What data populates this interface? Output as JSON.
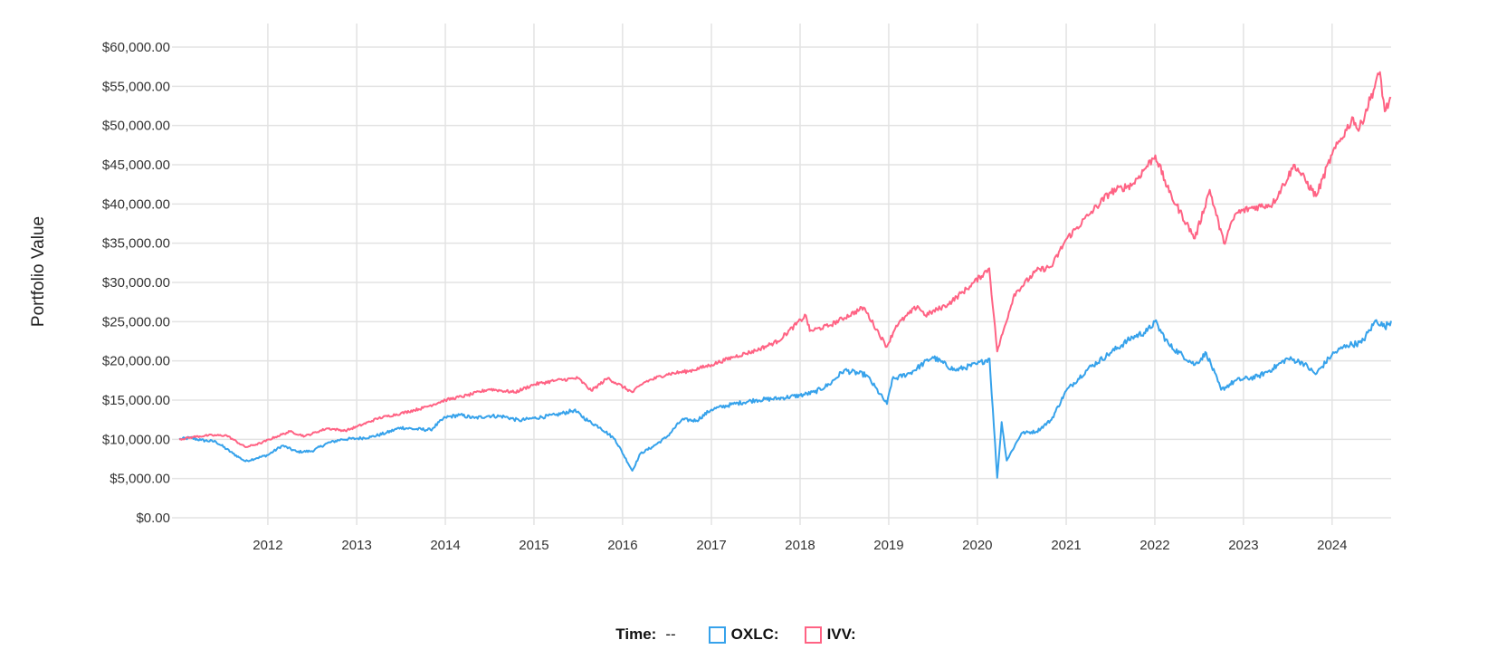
{
  "chart_data": {
    "type": "line",
    "title": "",
    "ylabel": "Portfolio Value",
    "xlabel": "",
    "ylim": [
      0,
      60000
    ],
    "xlim": [
      "2011-01-01",
      "2024-08-31"
    ],
    "y_ticks": [
      0,
      5000,
      10000,
      15000,
      20000,
      25000,
      30000,
      35000,
      40000,
      45000,
      50000,
      55000,
      60000
    ],
    "y_tick_labels": [
      "$0.00",
      "$5,000.00",
      "$10,000.00",
      "$15,000.00",
      "$20,000.00",
      "$25,000.00",
      "$30,000.00",
      "$35,000.00",
      "$40,000.00",
      "$45,000.00",
      "$50,000.00",
      "$55,000.00",
      "$60,000.00"
    ],
    "x_tick_labels": [
      "2012",
      "2013",
      "2014",
      "2015",
      "2016",
      "2017",
      "2018",
      "2019",
      "2020",
      "2021",
      "2022",
      "2023",
      "2024"
    ],
    "grid": true,
    "legend_position": "bottom-center",
    "series": [
      {
        "name": "OXLC",
        "color": "#36a2eb",
        "points": [
          [
            "2011-01-01",
            10000
          ],
          [
            "2011-02-15",
            10200
          ],
          [
            "2011-04-01",
            9900
          ],
          [
            "2011-06-01",
            9700
          ],
          [
            "2011-08-10",
            8200
          ],
          [
            "2011-10-01",
            7200
          ],
          [
            "2011-11-15",
            7600
          ],
          [
            "2012-01-01",
            8000
          ],
          [
            "2012-03-01",
            9200
          ],
          [
            "2012-05-01",
            8400
          ],
          [
            "2012-07-01",
            8500
          ],
          [
            "2012-09-01",
            9500
          ],
          [
            "2012-11-01",
            10000
          ],
          [
            "2013-01-01",
            10100
          ],
          [
            "2013-03-01",
            10300
          ],
          [
            "2013-05-01",
            10800
          ],
          [
            "2013-07-01",
            11500
          ],
          [
            "2013-09-01",
            11300
          ],
          [
            "2013-11-01",
            11200
          ],
          [
            "2014-01-01",
            12800
          ],
          [
            "2014-03-01",
            13100
          ],
          [
            "2014-05-01",
            12700
          ],
          [
            "2014-07-01",
            13000
          ],
          [
            "2014-09-01",
            12900
          ],
          [
            "2014-11-01",
            12400
          ],
          [
            "2015-01-01",
            12700
          ],
          [
            "2015-04-01",
            13100
          ],
          [
            "2015-06-15",
            13700
          ],
          [
            "2015-08-15",
            12300
          ],
          [
            "2015-10-01",
            11500
          ],
          [
            "2015-12-01",
            10000
          ],
          [
            "2016-02-10",
            6000
          ],
          [
            "2016-03-15",
            8200
          ],
          [
            "2016-05-01",
            9000
          ],
          [
            "2016-07-01",
            10300
          ],
          [
            "2016-09-01",
            12500
          ],
          [
            "2016-11-01",
            12400
          ],
          [
            "2017-01-01",
            13800
          ],
          [
            "2017-04-01",
            14500
          ],
          [
            "2017-07-01",
            15000
          ],
          [
            "2017-10-01",
            15200
          ],
          [
            "2018-01-01",
            15600
          ],
          [
            "2018-03-01",
            16000
          ],
          [
            "2018-05-01",
            17000
          ],
          [
            "2018-07-01",
            18800
          ],
          [
            "2018-10-01",
            18200
          ],
          [
            "2018-12-25",
            14500
          ],
          [
            "2019-01-15",
            17600
          ],
          [
            "2019-04-01",
            18500
          ],
          [
            "2019-07-01",
            20500
          ],
          [
            "2019-10-01",
            18800
          ],
          [
            "2020-01-01",
            19600
          ],
          [
            "2020-02-20",
            20300
          ],
          [
            "2020-03-23",
            5100
          ],
          [
            "2020-04-10",
            12200
          ],
          [
            "2020-05-01",
            7300
          ],
          [
            "2020-07-01",
            10800
          ],
          [
            "2020-09-01",
            11000
          ],
          [
            "2020-11-01",
            12500
          ],
          [
            "2021-01-01",
            16200
          ],
          [
            "2021-04-01",
            19000
          ],
          [
            "2021-07-01",
            21000
          ],
          [
            "2021-10-01",
            23000
          ],
          [
            "2021-12-01",
            23800
          ],
          [
            "2022-01-01",
            25000
          ],
          [
            "2022-03-01",
            22000
          ],
          [
            "2022-06-15",
            19500
          ],
          [
            "2022-08-01",
            21000
          ],
          [
            "2022-10-01",
            16300
          ],
          [
            "2022-12-01",
            17500
          ],
          [
            "2023-03-01",
            18000
          ],
          [
            "2023-05-01",
            19000
          ],
          [
            "2023-07-01",
            20300
          ],
          [
            "2023-09-01",
            19800
          ],
          [
            "2023-10-25",
            18300
          ],
          [
            "2024-01-01",
            20800
          ],
          [
            "2024-03-01",
            22000
          ],
          [
            "2024-05-01",
            22300
          ],
          [
            "2024-07-01",
            25200
          ],
          [
            "2024-08-05",
            24300
          ],
          [
            "2024-08-31",
            25100
          ]
        ]
      },
      {
        "name": "IVV",
        "color": "#ff6384",
        "points": [
          [
            "2011-01-01",
            10000
          ],
          [
            "2011-03-01",
            10300
          ],
          [
            "2011-05-01",
            10500
          ],
          [
            "2011-07-15",
            10500
          ],
          [
            "2011-10-01",
            9000
          ],
          [
            "2011-12-01",
            9500
          ],
          [
            "2012-02-01",
            10300
          ],
          [
            "2012-04-01",
            11000
          ],
          [
            "2012-06-01",
            10400
          ],
          [
            "2012-09-01",
            11400
          ],
          [
            "2012-11-15",
            11100
          ],
          [
            "2013-01-01",
            11600
          ],
          [
            "2013-04-01",
            12700
          ],
          [
            "2013-07-01",
            13300
          ],
          [
            "2013-10-01",
            14000
          ],
          [
            "2014-01-01",
            15000
          ],
          [
            "2014-04-01",
            15600
          ],
          [
            "2014-07-01",
            16400
          ],
          [
            "2014-10-15",
            16000
          ],
          [
            "2015-01-01",
            17000
          ],
          [
            "2015-04-01",
            17500
          ],
          [
            "2015-07-01",
            17800
          ],
          [
            "2015-08-25",
            16200
          ],
          [
            "2015-11-01",
            17800
          ],
          [
            "2016-02-10",
            16000
          ],
          [
            "2016-04-01",
            17300
          ],
          [
            "2016-07-01",
            18300
          ],
          [
            "2016-10-01",
            18700
          ],
          [
            "2017-01-01",
            19500
          ],
          [
            "2017-04-01",
            20500
          ],
          [
            "2017-07-01",
            21300
          ],
          [
            "2017-10-01",
            22500
          ],
          [
            "2018-01-25",
            25800
          ],
          [
            "2018-02-10",
            23800
          ],
          [
            "2018-05-01",
            24500
          ],
          [
            "2018-09-20",
            26800
          ],
          [
            "2018-12-24",
            21800
          ],
          [
            "2019-02-01",
            24500
          ],
          [
            "2019-04-30",
            27000
          ],
          [
            "2019-06-01",
            25800
          ],
          [
            "2019-09-01",
            27200
          ],
          [
            "2019-12-01",
            29500
          ],
          [
            "2020-02-19",
            31800
          ],
          [
            "2020-03-23",
            21200
          ],
          [
            "2020-06-01",
            28500
          ],
          [
            "2020-09-01",
            31500
          ],
          [
            "2020-11-01",
            32000
          ],
          [
            "2021-01-01",
            35500
          ],
          [
            "2021-04-01",
            38500
          ],
          [
            "2021-07-01",
            41500
          ],
          [
            "2021-10-01",
            42500
          ],
          [
            "2022-01-03",
            46200
          ],
          [
            "2022-03-01",
            41500
          ],
          [
            "2022-06-15",
            35600
          ],
          [
            "2022-08-15",
            41800
          ],
          [
            "2022-10-12",
            35000
          ],
          [
            "2022-12-01",
            38800
          ],
          [
            "2023-02-01",
            39500
          ],
          [
            "2023-05-01",
            40000
          ],
          [
            "2023-07-31",
            45000
          ],
          [
            "2023-10-27",
            41000
          ],
          [
            "2024-01-01",
            46300
          ],
          [
            "2024-03-28",
            51000
          ],
          [
            "2024-04-19",
            49300
          ],
          [
            "2024-07-16",
            56800
          ],
          [
            "2024-08-05",
            51800
          ],
          [
            "2024-08-31",
            53500
          ]
        ]
      }
    ]
  },
  "legend": {
    "time_label": "Time:",
    "time_value": "--",
    "items": [
      {
        "label": "OXLC:",
        "color": "#36a2eb"
      },
      {
        "label": "IVV:",
        "color": "#ff6384"
      }
    ]
  }
}
